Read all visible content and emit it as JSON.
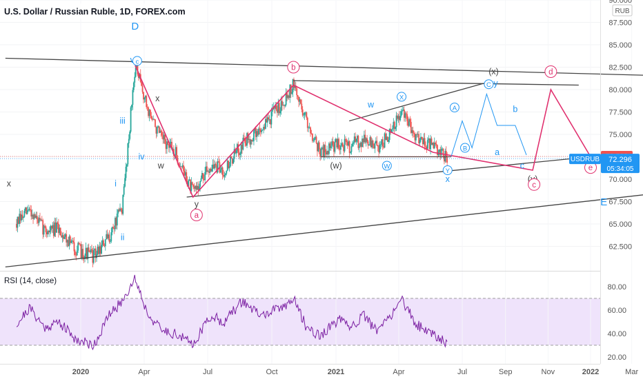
{
  "header": {
    "title": "U.S. Dollar / Russian Ruble, 1D, FOREX.com",
    "currency_badge": "RUB"
  },
  "colors": {
    "candle_up": "#26a69a",
    "candle_down": "#ef5350",
    "wave_pink": "#e0306e",
    "wave_blue": "#2196f3",
    "line_dark": "#444444",
    "rsi_line": "#7b1fa2",
    "rsi_band": "#efe3fb",
    "price_tag": "#2196f3",
    "last_tag": "#ef5350"
  },
  "chart_data": [
    {
      "type": "candlestick",
      "title": "U.S. Dollar / Russian Ruble, 1D, FOREX.com",
      "ylim": [
        60.0,
        90.0
      ],
      "y_ticks": [
        "90.000",
        "87.500",
        "85.000",
        "82.500",
        "80.000",
        "77.500",
        "75.000",
        "72.500",
        "70.000",
        "67.500",
        "65.000",
        "62.500"
      ],
      "x_tick_labels": [
        "2020",
        "Apr",
        "Jul",
        "Oct",
        "2021",
        "Apr",
        "Jul",
        "Sep",
        "Nov",
        "2022",
        "Mar"
      ],
      "price_path": [
        {
          "date": "2019-10-01",
          "close": 65.0
        },
        {
          "date": "2019-10-20",
          "close": 66.6
        },
        {
          "date": "2019-11-10",
          "close": 64.3
        },
        {
          "date": "2019-12-01",
          "close": 64.4
        },
        {
          "date": "2019-12-25",
          "close": 62.2
        },
        {
          "date": "2020-01-20",
          "close": 61.4
        },
        {
          "date": "2020-02-10",
          "close": 63.4
        },
        {
          "date": "2020-03-01",
          "close": 67.0
        },
        {
          "date": "2020-03-19",
          "close": 82.7
        },
        {
          "date": "2020-04-05",
          "close": 78.0
        },
        {
          "date": "2020-04-25",
          "close": 74.5
        },
        {
          "date": "2020-05-15",
          "close": 73.0
        },
        {
          "date": "2020-06-10",
          "close": 68.5
        },
        {
          "date": "2020-07-05",
          "close": 71.5
        },
        {
          "date": "2020-07-25",
          "close": 71.0
        },
        {
          "date": "2020-08-20",
          "close": 74.0
        },
        {
          "date": "2020-09-15",
          "close": 75.5
        },
        {
          "date": "2020-10-15",
          "close": 78.5
        },
        {
          "date": "2020-11-01",
          "close": 80.5
        },
        {
          "date": "2020-11-20",
          "close": 76.5
        },
        {
          "date": "2020-12-10",
          "close": 73.0
        },
        {
          "date": "2021-01-05",
          "close": 74.0
        },
        {
          "date": "2021-01-20",
          "close": 73.7
        },
        {
          "date": "2021-02-10",
          "close": 74.5
        },
        {
          "date": "2021-03-01",
          "close": 73.5
        },
        {
          "date": "2021-03-20",
          "close": 75.0
        },
        {
          "date": "2021-04-05",
          "close": 77.5
        },
        {
          "date": "2021-04-25",
          "close": 75.0
        },
        {
          "date": "2021-05-20",
          "close": 73.6
        },
        {
          "date": "2021-06-10",
          "close": 72.3
        }
      ],
      "last_price": "72.538",
      "symbol_label": "USDRUB",
      "current_price": "72.296",
      "countdown": "05:34:05",
      "trend_lines": [
        {
          "from": {
            "date": "2019-09-15",
            "value": 83.5
          },
          "to": {
            "date": "2022-03-20",
            "value": 81.6
          }
        },
        {
          "from": {
            "date": "2019-09-15",
            "value": 60.2
          },
          "to": {
            "date": "2022-04-15",
            "value": 68.5
          }
        },
        {
          "from": {
            "date": "2020-06-01",
            "value": 68.0
          },
          "to": {
            "date": "2022-01-01",
            "value": 72.5
          }
        },
        {
          "from": {
            "date": "2020-11-01",
            "value": 81.0
          },
          "to": {
            "date": "2021-12-15",
            "value": 80.5
          }
        },
        {
          "from": {
            "date": "2020-12-10",
            "value": 72.5
          },
          "to": {
            "date": "2021-06-15",
            "value": 72.5
          }
        },
        {
          "from": {
            "date": "2021-01-20",
            "value": 76.5
          },
          "to": {
            "date": "2021-08-01",
            "value": 80.7
          }
        }
      ],
      "wave_path_pink": [
        {
          "date": "2020-03-19",
          "value": 82.7
        },
        {
          "date": "2020-06-10",
          "value": 68.0
        },
        {
          "date": "2020-11-01",
          "value": 80.5
        },
        {
          "date": "2021-05-20",
          "value": 73.0
        },
        {
          "date": "2021-10-10",
          "value": 71.0
        },
        {
          "date": "2021-11-05",
          "value": 80.0
        },
        {
          "date": "2022-01-01",
          "value": 72.5
        }
      ],
      "wave_path_blue": [
        {
          "date": "2021-06-15",
          "value": 72.5
        },
        {
          "date": "2021-07-01",
          "value": 76.5
        },
        {
          "date": "2021-07-15",
          "value": 73.5
        },
        {
          "date": "2021-08-05",
          "value": 79.5
        },
        {
          "date": "2021-08-20",
          "value": 76.0
        },
        {
          "date": "2021-09-15",
          "value": 76.0
        },
        {
          "date": "2021-10-01",
          "value": 72.7
        }
      ],
      "wave_labels": [
        {
          "text": "D",
          "date": "2020-03-19",
          "value": 87.0,
          "color": "blue",
          "circled": false
        },
        {
          "text": "v",
          "date": "2020-03-15",
          "value": 83.3,
          "color": "blue",
          "circled": false
        },
        {
          "text": "c",
          "date": "2020-03-22",
          "value": 83.2,
          "color": "blue",
          "circled": true
        },
        {
          "text": "x",
          "date": "2020-04-20",
          "value": 79.0,
          "color": "dark",
          "circled": false
        },
        {
          "text": "iii",
          "date": "2020-03-01",
          "value": 76.5,
          "color": "blue",
          "circled": false
        },
        {
          "text": "iv",
          "date": "2020-03-28",
          "value": 72.5,
          "color": "blue",
          "circled": false
        },
        {
          "text": "w",
          "date": "2020-04-25",
          "value": 71.5,
          "color": "dark",
          "circled": false
        },
        {
          "text": "i",
          "date": "2020-02-20",
          "value": 69.5,
          "color": "blue",
          "circled": false
        },
        {
          "text": "ii",
          "date": "2020-03-01",
          "value": 63.5,
          "color": "blue",
          "circled": false
        },
        {
          "text": "x",
          "date": "2019-09-20",
          "value": 69.5,
          "color": "dark",
          "circled": false
        },
        {
          "text": "y",
          "date": "2020-06-15",
          "value": 67.2,
          "color": "dark",
          "circled": false
        },
        {
          "text": "a",
          "date": "2020-06-15",
          "value": 66.0,
          "color": "pink",
          "circled": true
        },
        {
          "text": "b",
          "date": "2020-11-01",
          "value": 82.5,
          "color": "pink",
          "circled": true
        },
        {
          "text": "(w)",
          "date": "2021-01-01",
          "value": 71.5,
          "color": "dark",
          "circled": false
        },
        {
          "text": "w",
          "date": "2021-02-20",
          "value": 78.3,
          "color": "blue",
          "circled": false
        },
        {
          "text": "X",
          "date": "2021-04-05",
          "value": 79.2,
          "color": "blue",
          "circled": true
        },
        {
          "text": "W",
          "date": "2021-03-15",
          "value": 71.5,
          "color": "blue",
          "circled": true
        },
        {
          "text": "Y",
          "date": "2021-06-10",
          "value": 71.0,
          "color": "blue",
          "circled": true
        },
        {
          "text": "x",
          "date": "2021-06-10",
          "value": 70.0,
          "color": "blue",
          "circled": false
        },
        {
          "text": "A",
          "date": "2021-06-20",
          "value": 78.0,
          "color": "blue",
          "circled": true
        },
        {
          "text": "B",
          "date": "2021-07-05",
          "value": 73.5,
          "color": "blue",
          "circled": true
        },
        {
          "text": "a",
          "date": "2021-08-20",
          "value": 73.0,
          "color": "blue",
          "circled": false
        },
        {
          "text": "b",
          "date": "2021-09-15",
          "value": 77.8,
          "color": "blue",
          "circled": false
        },
        {
          "text": "c",
          "date": "2021-09-25",
          "value": 71.5,
          "color": "blue",
          "circled": false
        },
        {
          "text": "(x)",
          "date": "2021-08-15",
          "value": 82.0,
          "color": "dark",
          "circled": false
        },
        {
          "text": "C",
          "date": "2021-08-08",
          "value": 80.6,
          "color": "blue",
          "circled": true
        },
        {
          "text": "y",
          "date": "2021-08-18",
          "value": 80.7,
          "color": "blue",
          "circled": false
        },
        {
          "text": "d",
          "date": "2021-11-05",
          "value": 82.0,
          "color": "pink",
          "circled": true
        },
        {
          "text": "(y)",
          "date": "2021-10-10",
          "value": 70.0,
          "color": "dark",
          "circled": false
        },
        {
          "text": "c",
          "date": "2021-10-12",
          "value": 69.4,
          "color": "pink",
          "circled": true
        },
        {
          "text": "e",
          "date": "2022-01-01",
          "value": 71.3,
          "color": "pink",
          "circled": true
        },
        {
          "text": "E",
          "date": "2022-01-20",
          "value": 67.4,
          "color": "blue",
          "circled": false
        }
      ]
    },
    {
      "type": "line",
      "title": "RSI (14, close)",
      "ylim": [
        20,
        90
      ],
      "y_ticks": [
        "80.00",
        "60.00",
        "40.00",
        "20.00"
      ],
      "band": [
        30,
        70
      ],
      "rsi_path": [
        {
          "date": "2019-10-01",
          "value": 48
        },
        {
          "date": "2019-10-20",
          "value": 62
        },
        {
          "date": "2019-11-10",
          "value": 45
        },
        {
          "date": "2019-12-01",
          "value": 50
        },
        {
          "date": "2019-12-25",
          "value": 35
        },
        {
          "date": "2020-01-20",
          "value": 30
        },
        {
          "date": "2020-02-10",
          "value": 55
        },
        {
          "date": "2020-03-01",
          "value": 68
        },
        {
          "date": "2020-03-19",
          "value": 88
        },
        {
          "date": "2020-04-05",
          "value": 58
        },
        {
          "date": "2020-04-25",
          "value": 43
        },
        {
          "date": "2020-05-15",
          "value": 40
        },
        {
          "date": "2020-06-10",
          "value": 31
        },
        {
          "date": "2020-07-05",
          "value": 55
        },
        {
          "date": "2020-07-25",
          "value": 50
        },
        {
          "date": "2020-08-20",
          "value": 68
        },
        {
          "date": "2020-09-15",
          "value": 55
        },
        {
          "date": "2020-10-15",
          "value": 62
        },
        {
          "date": "2020-11-01",
          "value": 70
        },
        {
          "date": "2020-11-20",
          "value": 45
        },
        {
          "date": "2020-12-10",
          "value": 38
        },
        {
          "date": "2021-01-05",
          "value": 52
        },
        {
          "date": "2021-01-20",
          "value": 45
        },
        {
          "date": "2021-02-10",
          "value": 55
        },
        {
          "date": "2021-03-01",
          "value": 42
        },
        {
          "date": "2021-03-20",
          "value": 55
        },
        {
          "date": "2021-04-05",
          "value": 70
        },
        {
          "date": "2021-04-25",
          "value": 48
        },
        {
          "date": "2021-05-20",
          "value": 40
        },
        {
          "date": "2021-06-10",
          "value": 32
        }
      ]
    }
  ]
}
